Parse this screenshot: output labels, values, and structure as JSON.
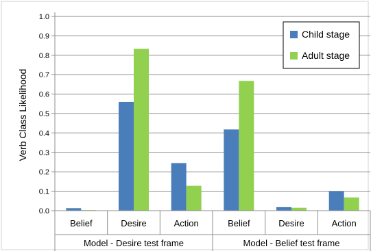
{
  "chart_data": {
    "type": "bar",
    "ylabel": "Verb Class Likelihood",
    "ylim": [
      0,
      1.0
    ],
    "yticks": [
      "0.0",
      "0.1",
      "0.2",
      "0.3",
      "0.4",
      "0.5",
      "0.6",
      "0.7",
      "0.8",
      "0.9",
      "1.0"
    ],
    "grid": true,
    "legend_position": "top-right",
    "categories": [
      "Belief",
      "Desire",
      "Action",
      "Belief",
      "Desire",
      "Action"
    ],
    "groups": [
      {
        "label": "Model - Desire test frame",
        "span": 3
      },
      {
        "label": "Model - Belief test frame",
        "span": 3
      }
    ],
    "series": [
      {
        "name": "Child stage",
        "color": "#4a7ebb",
        "values": [
          0.013,
          0.56,
          0.245,
          0.418,
          0.018,
          0.1
        ]
      },
      {
        "name": "Adult stage",
        "color": "#92d050",
        "values": [
          0.003,
          0.833,
          0.128,
          0.668,
          0.015,
          0.068
        ]
      }
    ]
  }
}
